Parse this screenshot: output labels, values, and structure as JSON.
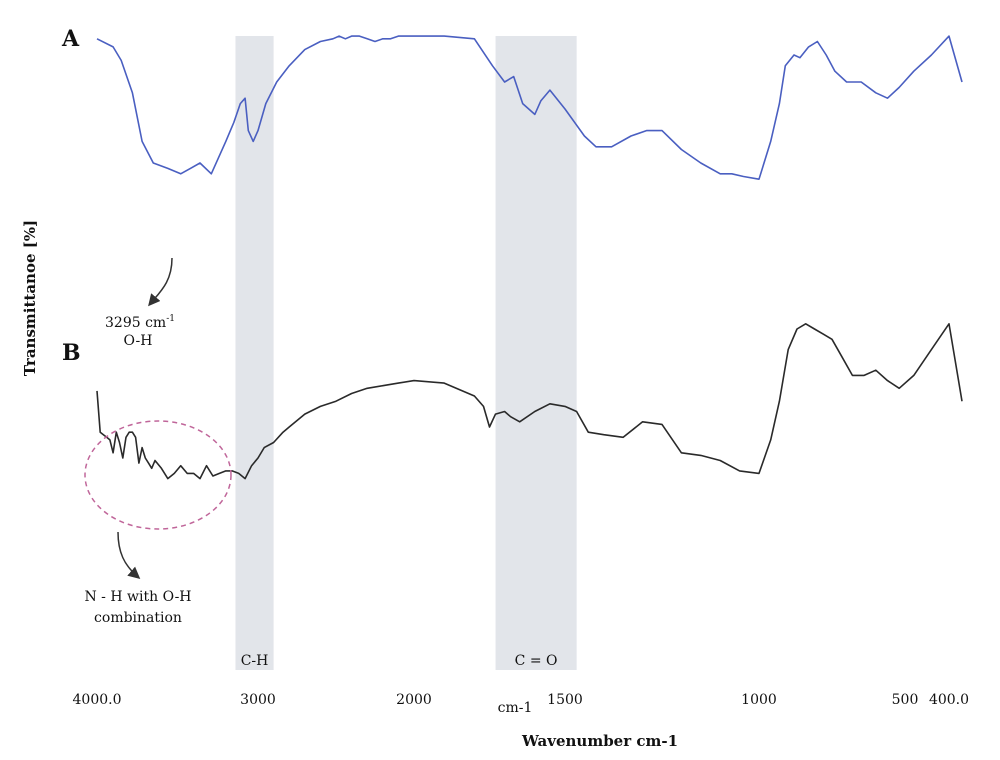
{
  "chart_data": {
    "type": "line",
    "xlabel": "Wavenumber cm-1",
    "ylabel": "Transmittanoe [%]",
    "x_reversed": true,
    "xlim": [
      4000,
      300
    ],
    "xticks": [
      {
        "value": 4000,
        "label": "4000.0"
      },
      {
        "value": 3000,
        "label": "3000"
      },
      {
        "value": 2000,
        "label": "2000"
      },
      {
        "value": 1500,
        "label": "1500"
      },
      {
        "value": 1000,
        "label": "1000"
      },
      {
        "value": 500,
        "label": "500"
      },
      {
        "value": 400,
        "label": "400.0"
      }
    ],
    "extra_axis_text": "cm-1",
    "bands": [
      {
        "label": "C-H",
        "range": [
          3140,
          2900
        ]
      },
      {
        "label": "C = O",
        "range": [
          1730,
          1470
        ]
      }
    ],
    "series": [
      {
        "name": "A",
        "color": "#4a5fc1",
        "x": [
          4000,
          3900,
          3850,
          3780,
          3720,
          3650,
          3560,
          3480,
          3420,
          3360,
          3290,
          3200,
          3150,
          3110,
          3080,
          3060,
          3030,
          3000,
          2950,
          2880,
          2800,
          2700,
          2600,
          2520,
          2480,
          2440,
          2400,
          2350,
          2300,
          2250,
          2200,
          2150,
          2100,
          2050,
          2000,
          1900,
          1800,
          1740,
          1700,
          1670,
          1640,
          1600,
          1580,
          1550,
          1500,
          1450,
          1420,
          1380,
          1330,
          1290,
          1250,
          1200,
          1150,
          1100,
          1070,
          1040,
          1000,
          960,
          930,
          910,
          880,
          860,
          830,
          800,
          770,
          740,
          700,
          650,
          600,
          560,
          520,
          480,
          440,
          400,
          380
        ],
        "y": [
          96,
          93,
          88,
          76,
          58,
          50,
          48,
          46,
          48,
          50,
          46,
          58,
          65,
          72,
          74,
          62,
          58,
          62,
          72,
          80,
          86,
          92,
          95,
          96,
          97,
          96,
          97,
          97,
          96,
          95,
          96,
          96,
          97,
          97,
          97,
          97,
          96,
          86,
          80,
          82,
          72,
          68,
          73,
          77,
          70,
          60,
          56,
          56,
          60,
          62,
          62,
          55,
          50,
          46,
          46,
          45,
          44,
          58,
          72,
          86,
          90,
          89,
          93,
          95,
          90,
          84,
          80,
          80,
          76,
          74,
          78,
          84,
          90,
          97,
          80
        ]
      },
      {
        "name": "B",
        "color": "#2a2a2a",
        "x": [
          4000,
          3980,
          3960,
          3940,
          3920,
          3900,
          3880,
          3860,
          3840,
          3820,
          3800,
          3780,
          3760,
          3740,
          3720,
          3700,
          3680,
          3660,
          3640,
          3600,
          3560,
          3520,
          3480,
          3440,
          3400,
          3360,
          3320,
          3280,
          3240,
          3200,
          3160,
          3120,
          3080,
          3040,
          3000,
          2960,
          2900,
          2840,
          2800,
          2700,
          2600,
          2500,
          2400,
          2300,
          2200,
          2100,
          2000,
          1900,
          1800,
          1770,
          1750,
          1730,
          1700,
          1680,
          1650,
          1600,
          1550,
          1500,
          1470,
          1440,
          1400,
          1350,
          1300,
          1250,
          1200,
          1150,
          1100,
          1050,
          1000,
          960,
          930,
          900,
          870,
          840,
          810,
          780,
          750,
          720,
          680,
          640,
          600,
          560,
          520,
          480,
          440,
          400,
          380
        ],
        "y": [
          64,
          48,
          47,
          46,
          45,
          40,
          48,
          44,
          38,
          46,
          48,
          48,
          46,
          36,
          42,
          38,
          36,
          34,
          37,
          34,
          30,
          32,
          35,
          32,
          32,
          30,
          35,
          31,
          32,
          33,
          33,
          32,
          30,
          35,
          38,
          42,
          44,
          48,
          50,
          55,
          58,
          60,
          63,
          65,
          66,
          67,
          68,
          67,
          62,
          58,
          50,
          55,
          56,
          54,
          52,
          56,
          59,
          58,
          56,
          48,
          47,
          46,
          52,
          51,
          40,
          39,
          37,
          33,
          32,
          45,
          60,
          80,
          88,
          90,
          88,
          86,
          84,
          78,
          70,
          70,
          72,
          68,
          65,
          70,
          80,
          90,
          60
        ]
      }
    ],
    "annotations": [
      {
        "line1": "3295 cm",
        "sup": "-1",
        "line2": "O-H"
      },
      {
        "line1": "N - H with O-H",
        "line2": "combination"
      }
    ]
  }
}
